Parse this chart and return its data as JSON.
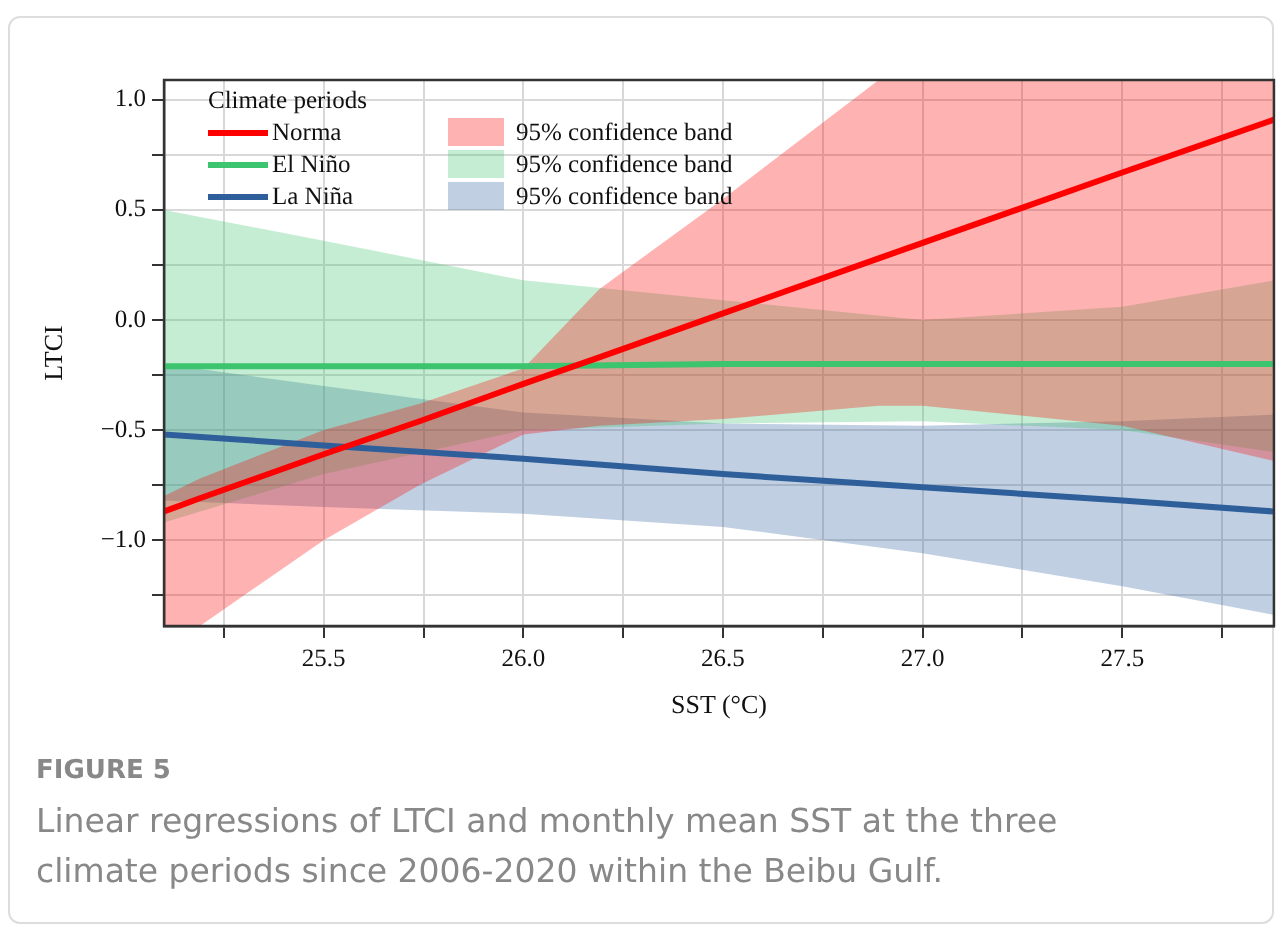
{
  "chart_data": {
    "type": "line",
    "xlabel": "SST (°C)",
    "ylabel": "LTCI",
    "legend_title": "Climate periods",
    "legend": "top left",
    "grid": true,
    "line_style": "solid",
    "marker": "none",
    "xlim": [
      25.1,
      27.88
    ],
    "ylim": [
      -1.39,
      1.09
    ],
    "xticks": [
      {
        "value": 25.25,
        "label": null
      },
      25.5,
      {
        "value": 25.75,
        "label": null
      },
      {
        "value": 26,
        "label": "26.0"
      },
      {
        "value": 26.25,
        "label": null
      },
      26.5,
      {
        "value": 26.75,
        "label": null
      },
      {
        "value": 27,
        "label": "27.0"
      },
      {
        "value": 27.25,
        "label": null
      },
      27.5,
      {
        "value": 27.75,
        "label": null
      }
    ],
    "yticks": [
      {
        "value": -1.25,
        "label": null
      },
      {
        "value": -1,
        "label": "−1.0"
      },
      {
        "value": -0.75,
        "label": null
      },
      {
        "value": -0.5,
        "label": "−0.5"
      },
      {
        "value": -0.25,
        "label": null
      },
      {
        "value": 0,
        "label": "0.0"
      },
      {
        "value": 0.25,
        "label": null
      },
      0.5,
      {
        "value": 0.75,
        "label": null
      },
      {
        "value": 1,
        "label": "1.0"
      }
    ],
    "series": [
      {
        "name": "Norma",
        "color": "#ff0000",
        "x": [
          25.1,
          25.19,
          25.5,
          25.74,
          26.0,
          26.19,
          26.5,
          26.89,
          27.0,
          27.5,
          27.88
        ],
        "values": [
          -0.87,
          -0.81,
          -0.61,
          -0.46,
          -0.29,
          -0.17,
          0.03,
          0.28,
          0.35,
          0.67,
          0.91
        ],
        "lower": [
          -1.39,
          -1.39,
          -1.0,
          -0.75,
          -0.52,
          -0.48,
          -0.45,
          -0.39,
          -0.39,
          -0.48,
          -0.64
        ],
        "upper": [
          -0.8,
          -0.72,
          -0.5,
          -0.38,
          -0.22,
          0.14,
          0.55,
          1.09,
          1.09,
          1.09,
          1.09
        ]
      },
      {
        "name": "El Niño",
        "color": "#3cc46e",
        "x": [
          25.1,
          25.5,
          26.0,
          26.5,
          27.0,
          27.5,
          27.88
        ],
        "values": [
          -0.21,
          -0.21,
          -0.21,
          -0.2,
          -0.2,
          -0.2,
          -0.2
        ],
        "lower": [
          -0.92,
          -0.7,
          -0.5,
          -0.47,
          -0.46,
          -0.5,
          -0.6
        ],
        "upper": [
          0.5,
          0.36,
          0.18,
          0.09,
          0.0,
          0.06,
          0.18
        ]
      },
      {
        "name": "La Niña",
        "color": "#2e5f9a",
        "x": [
          25.1,
          25.5,
          26.0,
          26.5,
          27.0,
          27.5,
          27.88
        ],
        "values": [
          -0.52,
          -0.57,
          -0.63,
          -0.7,
          -0.76,
          -0.82,
          -0.87
        ],
        "lower": [
          -0.82,
          -0.85,
          -0.88,
          -0.94,
          -1.06,
          -1.21,
          -1.34
        ],
        "upper": [
          -0.2,
          -0.3,
          -0.42,
          -0.47,
          -0.48,
          -0.46,
          -0.43
        ]
      }
    ],
    "annotations": [
      "95% confidence band",
      "95% confidence band",
      "95% confidence band",
      "FIGURE 5",
      "Linear regressions of LTCI and monthly mean SST at the three climate periods since 2006-2020 within the Beibu Gulf."
    ]
  }
}
